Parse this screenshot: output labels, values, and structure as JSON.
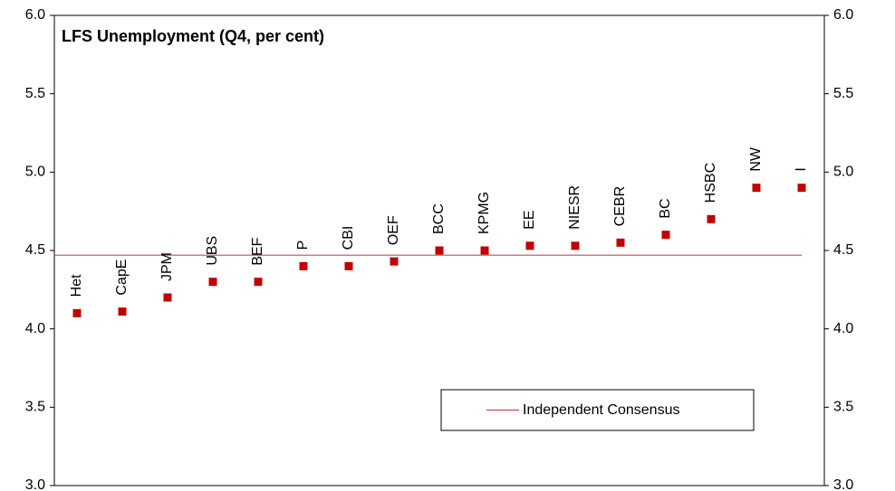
{
  "chart_data": {
    "type": "scatter",
    "title": "LFS Unemployment  (Q4, per cent)",
    "categories": [
      "Het",
      "CapE",
      "JPM",
      "UBS",
      "BEF",
      "P",
      "CBI",
      "OEF",
      "BCC",
      "KPMG",
      "EE",
      "NIESR",
      "CEBR",
      "BC",
      "HSBC",
      "NW",
      "I"
    ],
    "values": [
      4.1,
      4.11,
      4.2,
      4.3,
      4.3,
      4.4,
      4.4,
      4.43,
      4.5,
      4.5,
      4.53,
      4.53,
      4.55,
      4.6,
      4.7,
      4.9,
      4.9
    ],
    "color": "#c00000",
    "consensus": {
      "name": "Independent Consensus",
      "value": 4.47,
      "color": "#c0504d"
    },
    "ylim": [
      3.0,
      6.0
    ],
    "yticks": [
      {
        "value": 3,
        "label": "3.0"
      },
      {
        "value": 3.5,
        "label": "3.5"
      },
      {
        "value": 4,
        "label": "4.0"
      },
      {
        "value": 4.5,
        "label": "4.5"
      },
      {
        "value": 5,
        "label": "5.0"
      },
      {
        "value": 5.5,
        "label": "5.5"
      },
      {
        "value": 6,
        "label": "6.0"
      }
    ],
    "y2lim": [
      3.0,
      6.0
    ],
    "y2ticks": [
      {
        "value": 3,
        "label": "3.0"
      },
      {
        "value": 3.5,
        "label": "3.5"
      },
      {
        "value": 4,
        "label": "4.0"
      },
      {
        "value": 4.5,
        "label": "4.5"
      },
      {
        "value": 5,
        "label": "5.0"
      },
      {
        "value": 5.5,
        "label": "5.5"
      },
      {
        "value": 6,
        "label": "6.0"
      }
    ],
    "grid": false
  }
}
